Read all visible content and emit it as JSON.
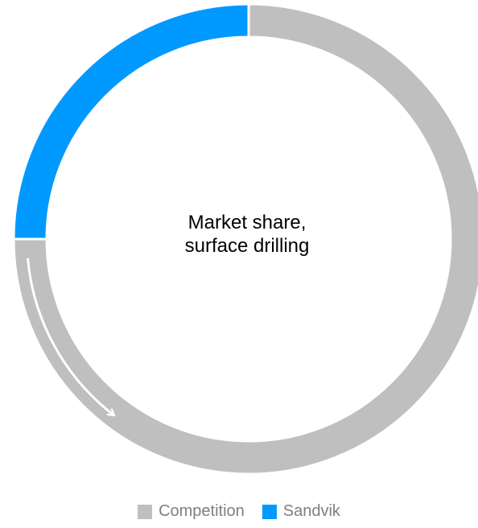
{
  "chart_data": {
    "type": "pie",
    "style": "donut",
    "center_label_lines": [
      "Market share,",
      "surface drilling"
    ],
    "series": [
      {
        "name": "Competition",
        "value": 75,
        "color": "#bfbfbf"
      },
      {
        "name": "Sandvik",
        "value": 25,
        "color": "#0099ff"
      }
    ],
    "slice_order": [
      "Sandvik",
      "Competition"
    ],
    "annotation": "white arrow along the Competition arc",
    "legend_position": "bottom-center"
  }
}
